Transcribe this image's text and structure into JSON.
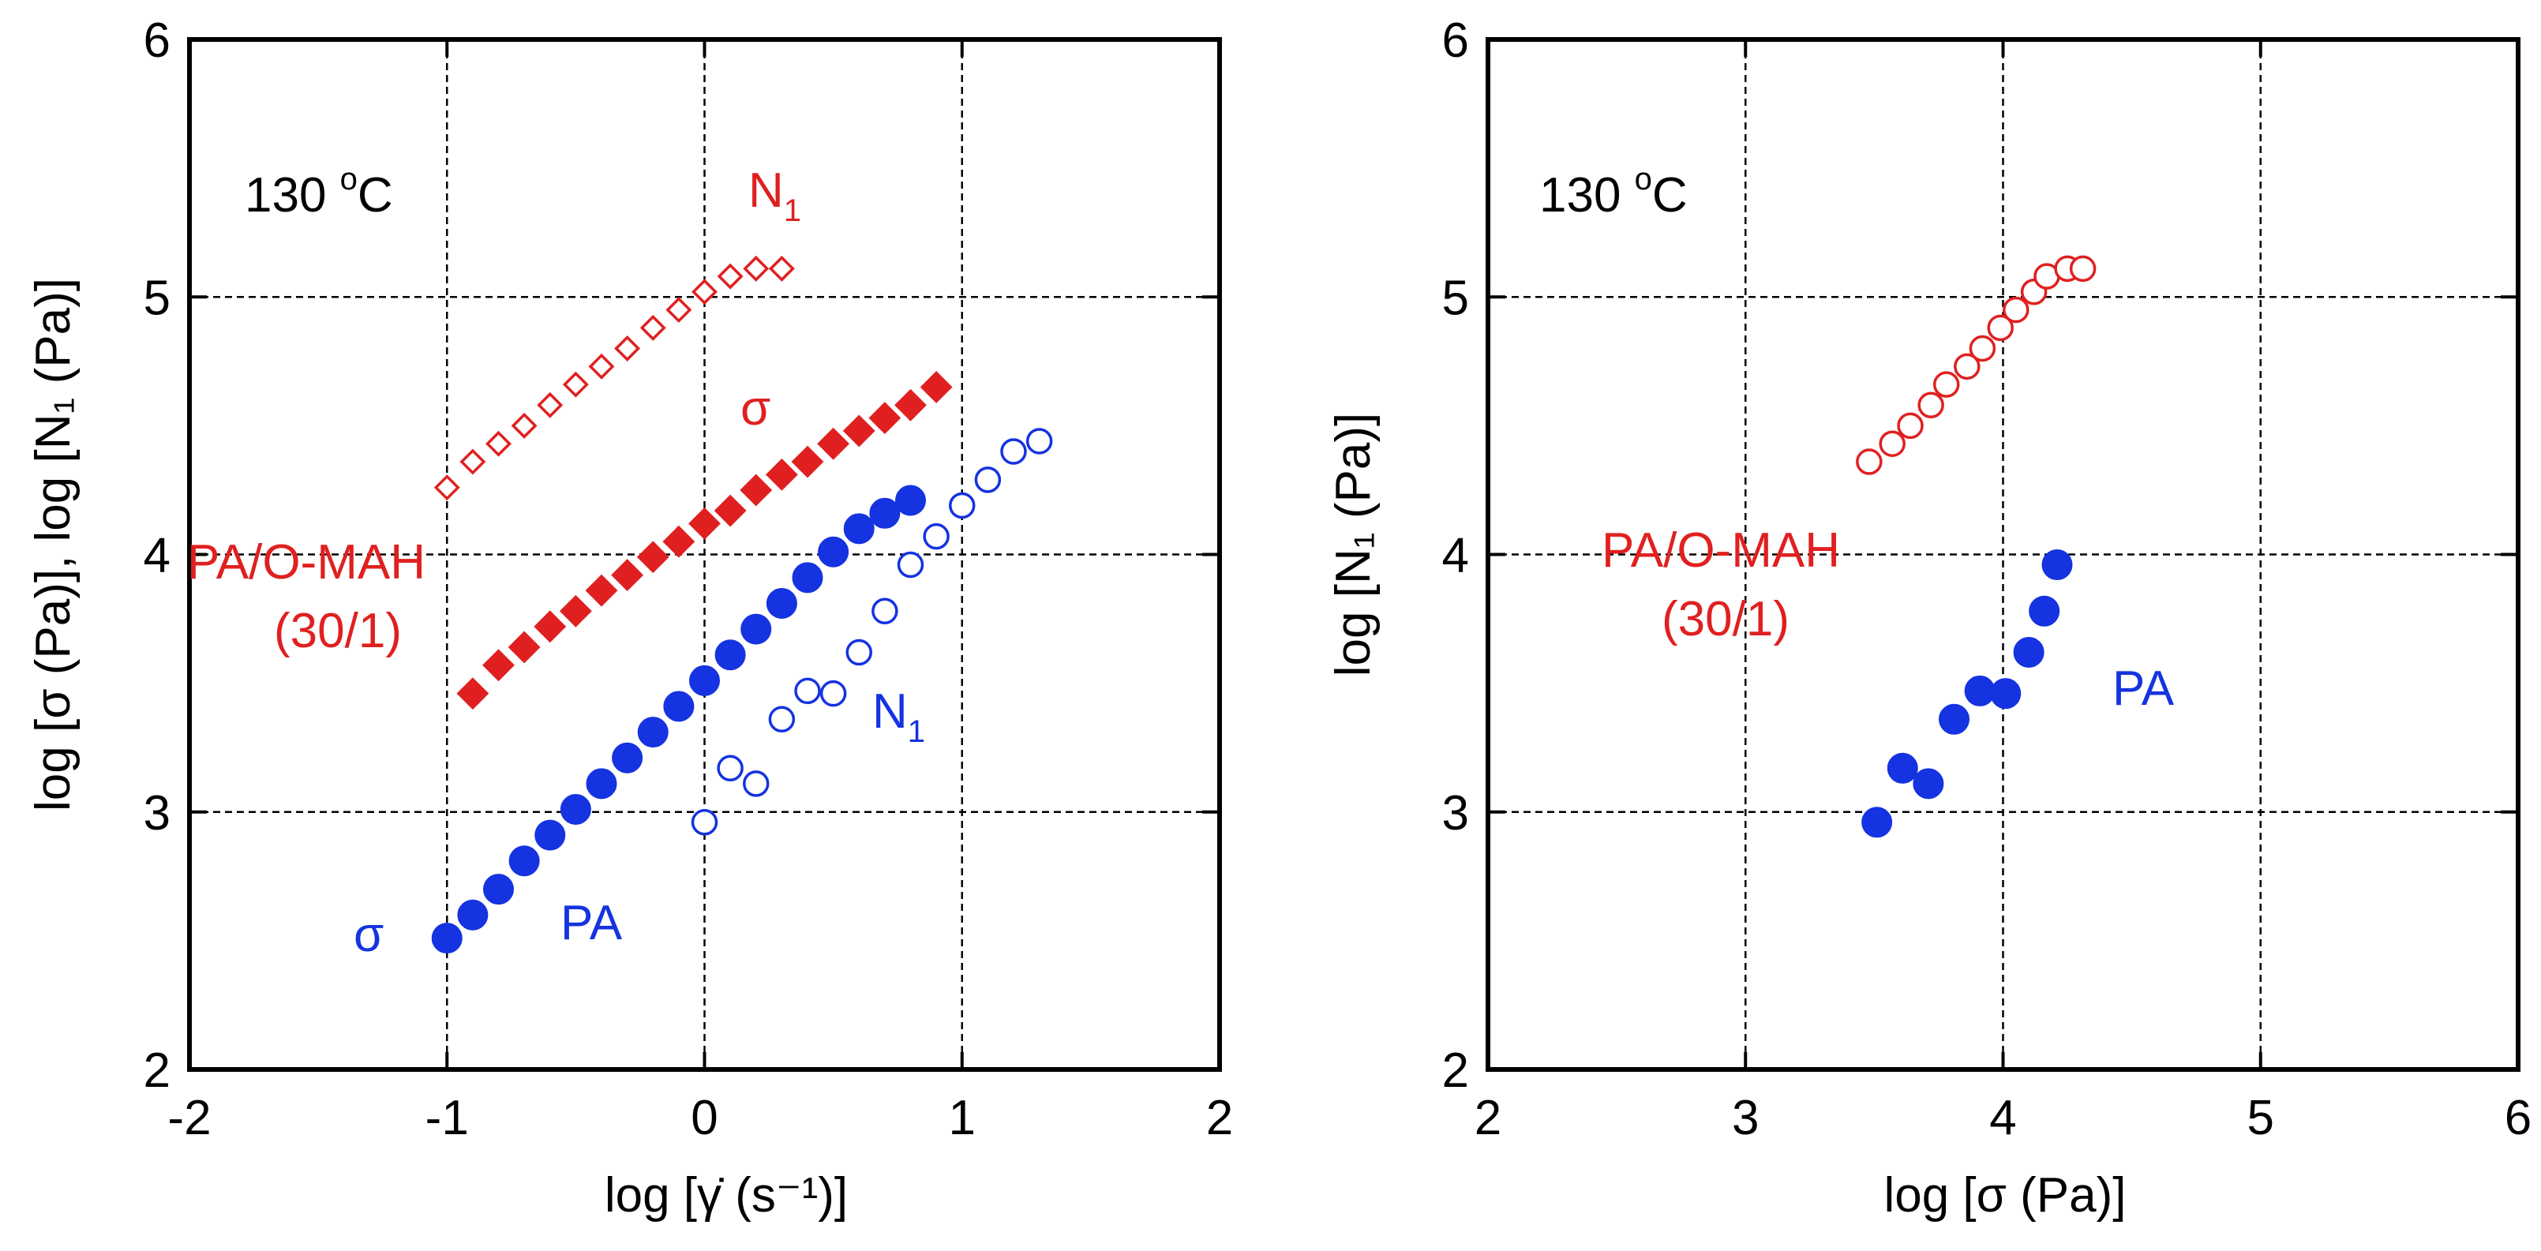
{
  "chart_data": [
    {
      "type": "scatter",
      "title": "",
      "xlabel": "log [γ̇ (s⁻¹)]",
      "ylabel": "log [σ (Pa)], log [N₁ (Pa)]",
      "xlim": [
        -2,
        2
      ],
      "ylim": [
        2,
        6
      ],
      "x_ticks": [
        -2,
        -1,
        0,
        1,
        2
      ],
      "y_ticks": [
        2,
        3,
        4,
        5,
        6
      ],
      "grid": "dashed at x = -1, 0, 1 and y = 3, 4, 5",
      "annotations": {
        "temperature": {
          "base": "130 ",
          "sup": "o",
          "tail": "C",
          "color": "#000000"
        },
        "pa_mah_n1": {
          "base": "N",
          "sub": "1",
          "color": "#e02020"
        },
        "pa_mah_sigma": {
          "base": "σ",
          "color": "#e02020"
        },
        "pa_mah_line1": {
          "base": "PA/O-MAH",
          "color": "#e02020"
        },
        "pa_mah_line2": {
          "base": "(30/1)",
          "color": "#e02020"
        },
        "pa_n1": {
          "base": "N",
          "sub": "1",
          "color": "#1533e0"
        },
        "pa_sigma": {
          "base": "σ",
          "color": "#1533e0"
        },
        "pa_label": {
          "base": "PA",
          "color": "#1533e0"
        }
      },
      "series": [
        {
          "sample": "PA/O-MAH (30/1)",
          "quantity": "N1",
          "marker": "open-diamond",
          "color": "#e02020",
          "x": [
            -1.0,
            -0.9,
            -0.8,
            -0.7,
            -0.6,
            -0.5,
            -0.4,
            -0.3,
            -0.2,
            -0.1,
            0.0,
            0.1,
            0.2,
            0.3
          ],
          "y": [
            4.26,
            4.36,
            4.43,
            4.5,
            4.58,
            4.66,
            4.73,
            4.8,
            4.88,
            4.95,
            5.02,
            5.08,
            5.11,
            5.11
          ]
        },
        {
          "sample": "PA/O-MAH (30/1)",
          "quantity": "σ",
          "marker": "filled-diamond",
          "color": "#e02020",
          "x": [
            -0.9,
            -0.8,
            -0.7,
            -0.6,
            -0.5,
            -0.4,
            -0.3,
            -0.2,
            -0.1,
            0.0,
            0.1,
            0.2,
            0.3,
            0.4,
            0.5,
            0.6,
            0.7,
            0.8,
            0.9
          ],
          "y": [
            3.46,
            3.57,
            3.64,
            3.72,
            3.78,
            3.86,
            3.92,
            3.99,
            4.05,
            4.12,
            4.17,
            4.25,
            4.31,
            4.36,
            4.43,
            4.48,
            4.53,
            4.58,
            4.65
          ]
        },
        {
          "sample": "PA",
          "quantity": "σ",
          "marker": "filled-circle",
          "color": "#1533e0",
          "x": [
            -1.0,
            -0.9,
            -0.8,
            -0.7,
            -0.6,
            -0.5,
            -0.4,
            -0.3,
            -0.2,
            -0.1,
            0.0,
            0.1,
            0.2,
            0.3,
            0.4,
            0.5,
            0.6,
            0.7,
            0.8
          ],
          "y": [
            2.51,
            2.6,
            2.7,
            2.81,
            2.91,
            3.01,
            3.11,
            3.21,
            3.31,
            3.41,
            3.51,
            3.61,
            3.71,
            3.81,
            3.91,
            4.01,
            4.1,
            4.16,
            4.21
          ]
        },
        {
          "sample": "PA",
          "quantity": "N1",
          "marker": "open-circle",
          "color": "#1533e0",
          "x": [
            0.0,
            0.1,
            0.2,
            0.3,
            0.4,
            0.5,
            0.6,
            0.7,
            0.8,
            0.9,
            1.0,
            1.1,
            1.2,
            1.3
          ],
          "y": [
            2.96,
            3.17,
            3.11,
            3.36,
            3.47,
            3.46,
            3.62,
            3.78,
            3.96,
            4.07,
            4.19,
            4.29,
            4.4,
            4.44
          ]
        }
      ]
    },
    {
      "type": "scatter",
      "title": "",
      "xlabel": "log [σ (Pa)]",
      "ylabel": "log [N₁ (Pa)]",
      "xlim": [
        2,
        6
      ],
      "ylim": [
        2,
        6
      ],
      "x_ticks": [
        2,
        3,
        4,
        5,
        6
      ],
      "y_ticks": [
        2,
        3,
        4,
        5,
        6
      ],
      "grid": "dashed at x = 3, 4, 5 and y = 3, 4, 5",
      "annotations": {
        "temperature": {
          "base": "130 ",
          "sup": "o",
          "tail": "C",
          "color": "#000000"
        },
        "pa_mah_line1": {
          "base": "PA/O-MAH",
          "color": "#e02020"
        },
        "pa_mah_line2": {
          "base": "(30/1)",
          "color": "#e02020"
        },
        "pa_label": {
          "base": "PA",
          "color": "#1533e0"
        }
      },
      "series": [
        {
          "sample": "PA/O-MAH (30/1)",
          "quantity": "N1 vs σ",
          "marker": "open-circle",
          "color": "#e02020",
          "x": [
            3.48,
            3.57,
            3.64,
            3.72,
            3.78,
            3.86,
            3.92,
            3.99,
            4.05,
            4.12,
            4.17,
            4.25,
            4.31
          ],
          "y": [
            4.36,
            4.43,
            4.5,
            4.58,
            4.66,
            4.73,
            4.8,
            4.88,
            4.95,
            5.02,
            5.08,
            5.11,
            5.11
          ]
        },
        {
          "sample": "PA",
          "quantity": "N1 vs σ",
          "marker": "filled-circle",
          "color": "#1533e0",
          "x": [
            3.51,
            3.61,
            3.71,
            3.81,
            3.91,
            4.01,
            4.1,
            4.16,
            4.21
          ],
          "y": [
            2.96,
            3.17,
            3.11,
            3.36,
            3.47,
            3.46,
            3.62,
            3.78,
            3.96
          ]
        }
      ]
    }
  ]
}
